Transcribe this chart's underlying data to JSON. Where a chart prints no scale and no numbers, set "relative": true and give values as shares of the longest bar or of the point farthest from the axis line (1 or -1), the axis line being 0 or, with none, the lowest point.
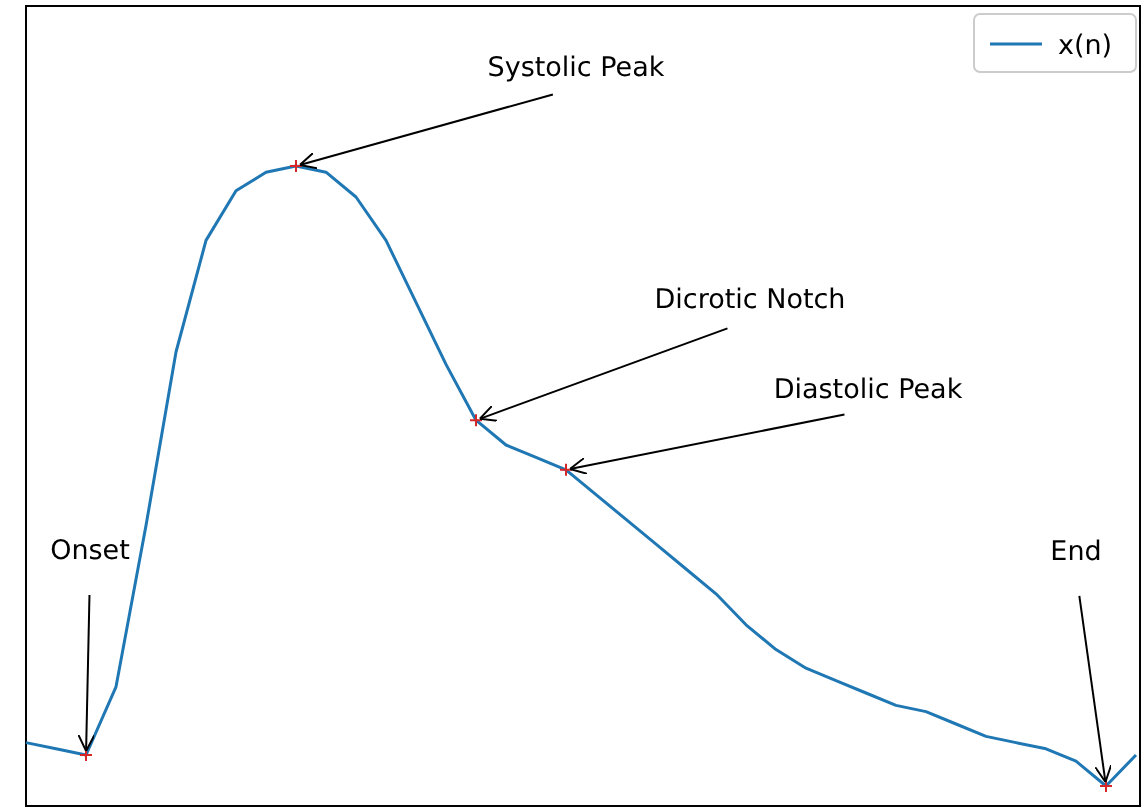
{
  "chart_data": {
    "type": "line",
    "relative": true,
    "legend": "top right",
    "categories": [
      null,
      null,
      null,
      null,
      null,
      null,
      null,
      null,
      null,
      null,
      null,
      null,
      null,
      null,
      null,
      null,
      null,
      null,
      null,
      null,
      null,
      null,
      null,
      null,
      null,
      null,
      null,
      null,
      null,
      null,
      null,
      null,
      null,
      null,
      null,
      null,
      null,
      null
    ],
    "series": [
      {
        "name": "x(n)",
        "color": "#1f77b4",
        "values": [
          0.07,
          0.06,
          0.05,
          0.16,
          0.42,
          0.7,
          0.88,
          0.96,
          0.99,
          1,
          0.99,
          0.95,
          0.88,
          0.78,
          0.68,
          0.59,
          0.55,
          0.53,
          0.51,
          0.47,
          0.43,
          0.39,
          0.35,
          0.31,
          0.26,
          0.22,
          0.19,
          0.17,
          0.15,
          0.13,
          0.12,
          0.1,
          0.08,
          0.07,
          0.06,
          0.04,
          0,
          0.05
        ]
      }
    ],
    "annotations": [
      "Onset",
      "Systolic Peak",
      "Dicrotic Notch",
      "Diastolic Peak",
      "End"
    ]
  }
}
